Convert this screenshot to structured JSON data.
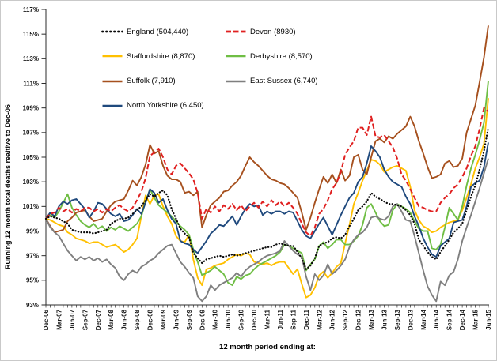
{
  "window": {
    "background": "#ffffff",
    "frame_border": "#c9c9c9",
    "axis_color": "#2b2b2b"
  },
  "chart_data": {
    "type": "line",
    "title": "",
    "ylabel": "Running 12 month total deaths realtive to Dec-06",
    "xlabel": "12 month period ending at:",
    "ylim": [
      93,
      117
    ],
    "ytick_step": 2,
    "ytick_suffix": "%",
    "grid": "off",
    "legend_position": "inside-top-left, two columns, no border",
    "x_unit": "monthly from Dec-06 to Jun-15, quarterly tick labels",
    "xtick_label_every": 3,
    "x_tick_labels": [
      "Dec-06",
      "Mar-07",
      "Jun-07",
      "Sep-07",
      "Dec-07",
      "Mar-08",
      "Jun-08",
      "Sep-08",
      "Dec-08",
      "Mar-09",
      "Jun-09",
      "Sep-09",
      "Dec-09",
      "Mar-10",
      "Jun-10",
      "Sep-10",
      "Dec-10",
      "Mar-11",
      "Jun-11",
      "Sep-11",
      "Dec-11",
      "Mar-12",
      "Jun-12",
      "Sep-12",
      "Dec-12",
      "Mar-13",
      "Jun-13",
      "Sep-13",
      "Dec-13",
      "Mar-14",
      "Jun-14",
      "Sep-14",
      "Dec-14",
      "Mar-15",
      "Jun-15"
    ],
    "draw_order": [
      2,
      3,
      4,
      5,
      6,
      1,
      0
    ],
    "legend_layout": [
      [
        0,
        2,
        4,
        6
      ],
      [
        1,
        3,
        5
      ]
    ],
    "series": [
      {
        "id": "england",
        "name": "England (504,440)",
        "color": "#0a0a0a",
        "style": "dotted",
        "values": [
          100.0,
          100.2,
          100.1,
          100.0,
          99.8,
          99.6,
          99.1,
          99.0,
          98.9,
          98.9,
          98.9,
          98.8,
          98.9,
          99.0,
          99.1,
          99.6,
          99.8,
          100.0,
          100.0,
          100.1,
          100.4,
          100.7,
          101.0,
          101.5,
          102.0,
          101.8,
          102.1,
          102.3,
          101.9,
          100.8,
          100.0,
          99.2,
          98.8,
          98.5,
          97.2,
          96.8,
          96.4,
          96.7,
          96.8,
          96.9,
          97.0,
          96.9,
          97.0,
          97.1,
          97.0,
          97.1,
          97.2,
          97.3,
          97.4,
          97.5,
          97.6,
          97.7,
          97.7,
          97.9,
          98.0,
          97.9,
          97.8,
          97.8,
          97.3,
          96.8,
          95.9,
          96.2,
          96.8,
          97.8,
          98.0,
          98.1,
          98.4,
          98.5,
          98.4,
          98.7,
          99.4,
          100.0,
          100.7,
          101.0,
          101.4,
          102.1,
          101.8,
          101.6,
          101.4,
          101.2,
          101.2,
          101.1,
          101.0,
          100.7,
          100.3,
          99.6,
          98.3,
          97.8,
          97.3,
          96.9,
          96.7,
          97.3,
          97.8,
          98.3,
          98.9,
          99.2,
          99.6,
          100.7,
          101.8,
          102.7,
          104.0,
          105.5,
          107.4
        ]
      },
      {
        "id": "devon",
        "name": "Devon (8930)",
        "color": "#e02020",
        "style": "dashed",
        "values": [
          100.0,
          100.4,
          100.5,
          100.9,
          100.6,
          100.8,
          100.5,
          100.8,
          100.6,
          100.9,
          100.9,
          100.6,
          100.8,
          100.5,
          100.8,
          100.6,
          100.9,
          101.1,
          100.8,
          100.6,
          100.9,
          101.5,
          102.2,
          103.3,
          105.1,
          105.4,
          105.7,
          105.0,
          104.0,
          103.6,
          104.3,
          104.5,
          104.1,
          103.7,
          103.2,
          102.1,
          100.0,
          100.8,
          100.5,
          101.0,
          100.6,
          101.1,
          100.8,
          101.2,
          100.7,
          101.1,
          100.6,
          101.0,
          101.3,
          100.9,
          101.4,
          101.0,
          101.5,
          101.1,
          101.4,
          101.0,
          101.3,
          100.9,
          100.4,
          99.6,
          98.9,
          98.6,
          99.3,
          100.4,
          100.8,
          101.5,
          102.4,
          102.9,
          103.8,
          105.2,
          105.8,
          106.3,
          107.4,
          107.4,
          106.8,
          108.3,
          106.7,
          106.6,
          106.8,
          106.3,
          105.8,
          104.9,
          103.6,
          103.1,
          102.4,
          101.7,
          101.0,
          100.9,
          100.7,
          100.6,
          100.6,
          101.3,
          101.7,
          102.0,
          102.5,
          102.8,
          103.4,
          104.1,
          105.1,
          105.9,
          107.3,
          109.0,
          108.7
        ]
      },
      {
        "id": "staffordshire",
        "name": "Staffordshire (8,870)",
        "color": "#ffc000",
        "style": "solid",
        "values": [
          100.0,
          99.9,
          99.7,
          99.5,
          99.4,
          98.9,
          98.7,
          98.4,
          98.3,
          98.2,
          98.0,
          98.1,
          98.1,
          97.9,
          97.7,
          97.8,
          97.9,
          97.6,
          97.3,
          97.5,
          97.9,
          98.4,
          100.2,
          101.9,
          101.2,
          101.9,
          102.0,
          101.0,
          100.2,
          99.6,
          98.6,
          98.2,
          98.1,
          98.7,
          96.7,
          95.2,
          94.6,
          95.9,
          96.0,
          96.2,
          96.3,
          96.4,
          96.7,
          96.9,
          97.1,
          97.0,
          97.2,
          97.1,
          96.5,
          96.4,
          96.3,
          96.4,
          96.2,
          96.4,
          96.5,
          96.5,
          96.0,
          95.5,
          95.9,
          94.7,
          93.6,
          93.8,
          94.4,
          95.4,
          95.7,
          95.2,
          95.6,
          96.1,
          96.4,
          98.0,
          99.5,
          101.2,
          102.1,
          103.1,
          103.9,
          104.8,
          104.7,
          104.4,
          103.8,
          104.0,
          104.2,
          104.3,
          104.1,
          103.9,
          102.6,
          100.7,
          99.9,
          99.4,
          99.2,
          98.9,
          99.0,
          99.3,
          99.5,
          99.7,
          99.8,
          99.9,
          100.7,
          101.7,
          102.8,
          104.1,
          105.0,
          106.1,
          109.8
        ]
      },
      {
        "id": "derbyshire",
        "name": "Derbyshire (8,570)",
        "color": "#6fbe44",
        "style": "solid",
        "values": [
          100.0,
          100.3,
          100.1,
          100.6,
          101.3,
          102.0,
          100.9,
          100.3,
          99.8,
          99.5,
          99.3,
          99.6,
          99.2,
          99.4,
          99.0,
          99.3,
          99.1,
          99.4,
          99.2,
          99.0,
          99.3,
          99.6,
          100.2,
          101.4,
          102.4,
          101.7,
          101.1,
          100.8,
          100.5,
          100.2,
          99.8,
          99.4,
          99.1,
          98.7,
          97.5,
          96.5,
          95.4,
          95.6,
          95.8,
          96.1,
          95.8,
          95.5,
          94.8,
          94.6,
          95.3,
          95.1,
          95.4,
          95.5,
          95.9,
          96.2,
          96.4,
          96.6,
          96.8,
          97.0,
          97.3,
          97.9,
          97.8,
          97.6,
          97.4,
          97.2,
          95.8,
          96.3,
          96.7,
          97.8,
          98.1,
          97.6,
          97.9,
          98.3,
          98.3,
          97.9,
          97.9,
          98.2,
          98.6,
          99.5,
          100.9,
          101.2,
          100.5,
          99.8,
          99.4,
          99.5,
          100.7,
          101.2,
          101.0,
          100.8,
          100.5,
          99.8,
          99.2,
          99.0,
          99.0,
          97.6,
          97.5,
          97.9,
          99.3,
          100.9,
          100.4,
          99.9,
          101.0,
          102.7,
          104.1,
          105.2,
          106.4,
          107.8,
          111.2
        ]
      },
      {
        "id": "suffolk",
        "name": "Suffolk (7,910)",
        "color": "#a6501e",
        "style": "solid",
        "values": [
          100.0,
          99.4,
          98.9,
          99.0,
          99.1,
          99.8,
          100.1,
          100.5,
          100.6,
          100.7,
          100.2,
          99.8,
          99.9,
          100.0,
          100.6,
          101.1,
          101.4,
          101.5,
          101.6,
          102.3,
          103.1,
          102.7,
          103.4,
          104.4,
          106.0,
          105.3,
          105.5,
          104.3,
          103.5,
          103.2,
          103.2,
          103.0,
          102.1,
          102.2,
          101.9,
          102.2,
          99.3,
          100.3,
          101.1,
          101.4,
          101.7,
          102.2,
          102.3,
          102.7,
          103.0,
          103.5,
          104.3,
          105.0,
          104.6,
          104.3,
          103.9,
          103.5,
          103.2,
          103.1,
          102.9,
          102.8,
          102.5,
          102.1,
          101.7,
          100.5,
          99.1,
          100.1,
          101.3,
          102.4,
          103.4,
          102.9,
          103.6,
          102.9,
          104.0,
          103.1,
          103.5,
          105.0,
          105.2,
          104.0,
          103.6,
          105.0,
          106.3,
          106.5,
          106.2,
          106.7,
          106.5,
          106.9,
          107.2,
          107.5,
          108.3,
          107.5,
          106.3,
          105.3,
          104.2,
          103.3,
          103.4,
          103.6,
          104.5,
          104.7,
          104.2,
          104.3,
          104.9,
          107.0,
          108.1,
          109.2,
          111.1,
          113.1,
          115.7
        ]
      },
      {
        "id": "east-sussex",
        "name": "East Sussex (6,740)",
        "color": "#7f7f7f",
        "style": "solid",
        "values": [
          100.0,
          99.3,
          98.9,
          98.6,
          98.0,
          97.4,
          97.0,
          96.6,
          96.9,
          96.7,
          96.9,
          96.6,
          96.8,
          96.5,
          96.7,
          96.3,
          96.0,
          95.3,
          95.0,
          95.5,
          95.8,
          95.6,
          96.1,
          96.3,
          96.6,
          96.8,
          97.2,
          97.5,
          97.8,
          97.9,
          97.2,
          96.5,
          96.1,
          95.6,
          95.2,
          93.7,
          93.3,
          93.7,
          94.6,
          94.2,
          94.6,
          94.8,
          95.0,
          95.2,
          95.6,
          95.3,
          95.8,
          96.1,
          96.3,
          96.5,
          96.8,
          97.0,
          97.1,
          97.2,
          97.4,
          98.2,
          97.8,
          97.4,
          97.1,
          96.9,
          95.3,
          94.2,
          95.5,
          95.0,
          95.4,
          96.3,
          95.5,
          95.8,
          96.2,
          96.7,
          97.7,
          98.3,
          98.7,
          98.9,
          99.3,
          100.1,
          100.2,
          100.0,
          99.9,
          100.2,
          101.0,
          101.2,
          100.6,
          99.9,
          99.8,
          98.6,
          97.2,
          95.8,
          94.5,
          93.8,
          93.3,
          94.9,
          94.6,
          95.4,
          95.7,
          96.7,
          98.2,
          99.3,
          100.3,
          101.4,
          102.5,
          103.7,
          104.9
        ]
      },
      {
        "id": "north-yorkshire",
        "name": "North Yorkshire (6,450)",
        "color": "#1f497d",
        "style": "solid",
        "values": [
          100.0,
          100.5,
          100.2,
          101.0,
          101.4,
          101.2,
          101.5,
          101.6,
          101.2,
          100.8,
          100.1,
          100.6,
          101.3,
          101.2,
          100.8,
          100.4,
          100.2,
          100.4,
          99.8,
          99.9,
          100.3,
          100.8,
          100.4,
          101.3,
          102.4,
          102.1,
          101.3,
          101.6,
          100.7,
          100.0,
          99.6,
          98.2,
          98.0,
          97.9,
          97.5,
          97.2,
          97.7,
          98.2,
          98.8,
          99.1,
          99.5,
          99.4,
          99.8,
          100.2,
          99.5,
          100.2,
          100.8,
          101.2,
          101.0,
          101.1,
          100.3,
          100.6,
          100.4,
          100.6,
          100.6,
          100.4,
          100.6,
          100.5,
          99.8,
          99.1,
          98.6,
          98.4,
          99.0,
          99.6,
          100.1,
          99.4,
          98.7,
          99.5,
          100.3,
          101.0,
          101.7,
          102.1,
          103.0,
          103.4,
          104.5,
          105.9,
          105.5,
          105.0,
          104.0,
          103.4,
          103.0,
          102.8,
          102.6,
          101.8,
          101.2,
          100.2,
          99.4,
          98.4,
          97.7,
          97.1,
          96.9,
          97.8,
          98.1,
          98.4,
          99.7,
          99.8,
          99.9,
          101.0,
          102.6,
          102.9,
          103.1,
          104.2,
          106.2
        ]
      }
    ]
  }
}
